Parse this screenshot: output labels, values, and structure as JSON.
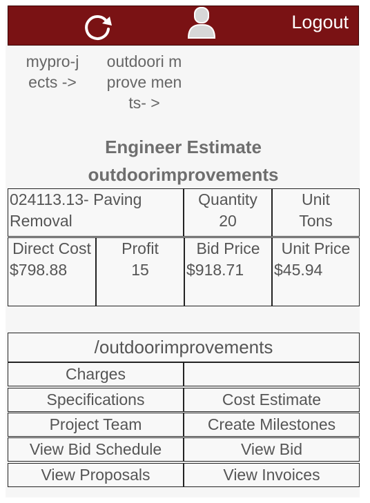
{
  "header": {
    "logout_label": "Logout"
  },
  "breadcrumbs": [
    "mypro-jects ->",
    "outdoori mprove ments- >"
  ],
  "page": {
    "title": "Engineer Estimate",
    "subtitle": "outdoorimprovements"
  },
  "estimate": {
    "item": "024113.13- Paving Removal",
    "quantity_label": "Quantity",
    "quantity_value": "20",
    "unit_label": "Unit",
    "unit_value": "Tons",
    "direct_cost_label": "Direct Cost",
    "direct_cost_value": "$798.88",
    "profit_label": "Profit",
    "profit_value": "15",
    "bid_price_label": "Bid Price",
    "bid_price_value": "$918.71",
    "unit_price_label": "Unit Price",
    "unit_price_value": "$45.94"
  },
  "menu": {
    "path": "/outdoorimprovements",
    "charges": "Charges",
    "specifications": "Specifications",
    "cost_estimate": "Cost Estimate",
    "project_team": "Project Team",
    "create_milestones": "Create Milestones",
    "view_bid_schedule": "View Bid Schedule",
    "view_bid": "View Bid",
    "view_proposals": "View Proposals",
    "view_invoices": "View Invoices"
  },
  "icons": {
    "refresh": "refresh-icon",
    "user": "user-icon"
  },
  "colors": {
    "header_bg": "#7a1214",
    "header_text": "#ffffff"
  }
}
